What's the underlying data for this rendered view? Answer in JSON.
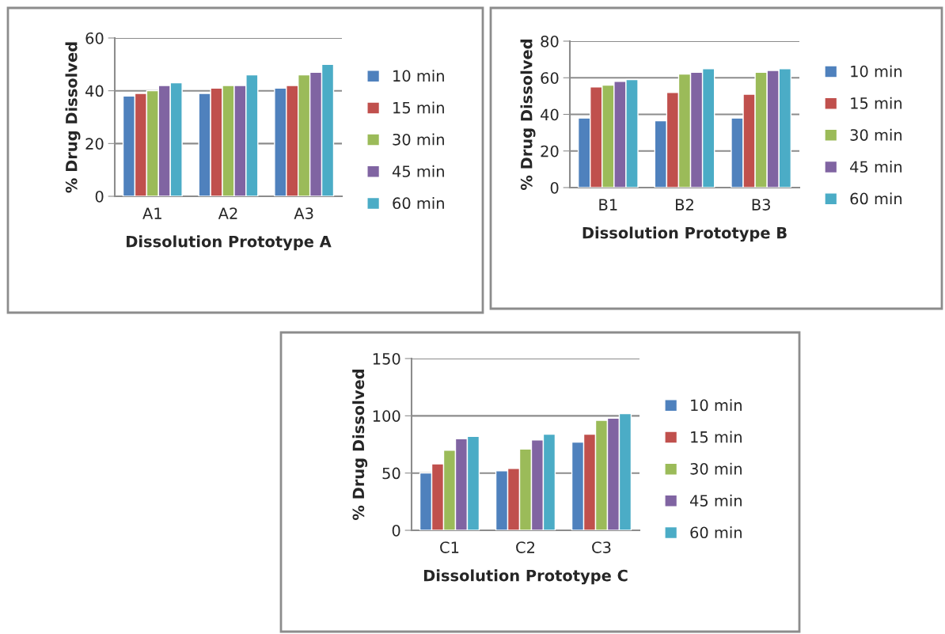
{
  "chart_data": [
    {
      "type": "bar",
      "xlabel": "Dissolution Prototype A",
      "ylabel": "% Drug Dissolved",
      "categories": [
        "A1",
        "A2",
        "A3"
      ],
      "ylim": [
        0,
        60
      ],
      "yticks": [
        0,
        20,
        40,
        60
      ],
      "grid": "y",
      "legend": "right",
      "series": [
        {
          "name": "10 min",
          "color": "#4f81bd",
          "values": [
            38,
            39,
            41
          ]
        },
        {
          "name": "15 min",
          "color": "#c0504d",
          "values": [
            39,
            41,
            42
          ]
        },
        {
          "name": "30 min",
          "color": "#9bbb59",
          "values": [
            40,
            42,
            46
          ]
        },
        {
          "name": "45 min",
          "color": "#8064a2",
          "values": [
            42,
            42,
            47
          ]
        },
        {
          "name": "60 min",
          "color": "#4bacc6",
          "values": [
            43,
            46,
            50
          ]
        }
      ]
    },
    {
      "type": "bar",
      "xlabel": "Dissolution Prototype B",
      "ylabel": "% Drug Dissolved",
      "categories": [
        "B1",
        "B2",
        "B3"
      ],
      "ylim": [
        0,
        80
      ],
      "yticks": [
        0,
        20,
        40,
        60,
        80
      ],
      "grid": "y",
      "legend": "right",
      "series": [
        {
          "name": "10 min",
          "color": "#4f81bd",
          "values": [
            38,
            36.5,
            38
          ]
        },
        {
          "name": "15 min",
          "color": "#c0504d",
          "values": [
            55,
            52,
            51
          ]
        },
        {
          "name": "30 min",
          "color": "#9bbb59",
          "values": [
            56,
            62,
            63
          ]
        },
        {
          "name": "45 min",
          "color": "#8064a2",
          "values": [
            58,
            63,
            64
          ]
        },
        {
          "name": "60 min",
          "color": "#4bacc6",
          "values": [
            59,
            65,
            65
          ]
        }
      ]
    },
    {
      "type": "bar",
      "xlabel": "Dissolution Prototype C",
      "ylabel": "% Drug Dissolved",
      "categories": [
        "C1",
        "C2",
        "C3"
      ],
      "ylim": [
        0,
        150
      ],
      "yticks": [
        0,
        50,
        100,
        150
      ],
      "grid": "y",
      "legend": "right",
      "series": [
        {
          "name": "10 min",
          "color": "#4f81bd",
          "values": [
            50,
            52,
            77
          ]
        },
        {
          "name": "15 min",
          "color": "#c0504d",
          "values": [
            58,
            54,
            84
          ]
        },
        {
          "name": "30 min",
          "color": "#9bbb59",
          "values": [
            70,
            71,
            96
          ]
        },
        {
          "name": "45 min",
          "color": "#8064a2",
          "values": [
            80,
            79,
            98
          ]
        },
        {
          "name": "60 min",
          "color": "#4bacc6",
          "values": [
            82,
            84,
            102
          ]
        }
      ]
    }
  ]
}
